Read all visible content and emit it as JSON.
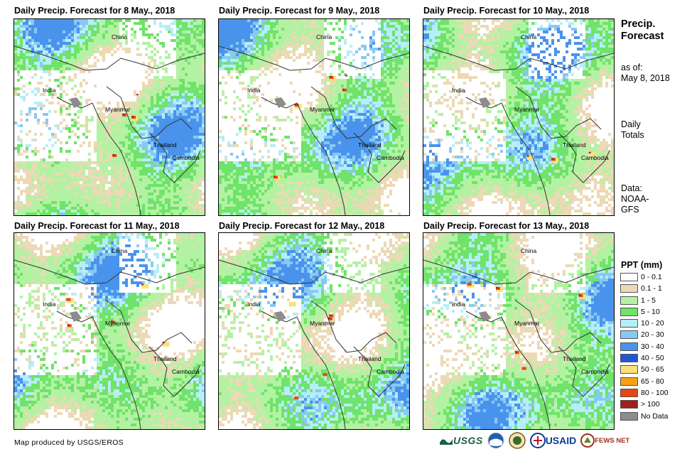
{
  "panels": [
    {
      "title": "Daily Precip. Forecast for 8 May., 2018",
      "seed": 11
    },
    {
      "title": "Daily Precip. Forecast for 9 May., 2018",
      "seed": 23
    },
    {
      "title": "Daily Precip. Forecast for 10 May., 2018",
      "seed": 37
    },
    {
      "title": "Daily Precip. Forecast for 11 May., 2018",
      "seed": 51
    },
    {
      "title": "Daily Precip. Forecast for 12 May., 2018",
      "seed": 67
    },
    {
      "title": "Daily Precip. Forecast for 13 May., 2018",
      "seed": 83
    }
  ],
  "country_labels": [
    "China",
    "India",
    "Myanmar",
    "Thailand",
    "Cambodia"
  ],
  "sidebar": {
    "title_line1": "Precip.",
    "title_line2": "Forecast",
    "asof_line1": "as of:",
    "asof_line2": "May 8, 2018",
    "daily_line1": "Daily",
    "daily_line2": "Totals",
    "data_line1": "Data:",
    "data_line2": "NOAA-",
    "data_line3": "GFS"
  },
  "legend": {
    "title": "PPT (mm)",
    "items": [
      {
        "label": "0 - 0.1",
        "color": "#ffffff"
      },
      {
        "label": "0.1 - 1",
        "color": "#ecd9b5"
      },
      {
        "label": "1 - 5",
        "color": "#b3f2a3"
      },
      {
        "label": "5 - 10",
        "color": "#6fe36a"
      },
      {
        "label": "10 - 20",
        "color": "#b6eef7"
      },
      {
        "label": "20 - 30",
        "color": "#87c9f5"
      },
      {
        "label": "30 - 40",
        "color": "#4a93ec"
      },
      {
        "label": "40 - 50",
        "color": "#1f57d8"
      },
      {
        "label": "50 - 65",
        "color": "#f9e27a"
      },
      {
        "label": "65 - 80",
        "color": "#f6a012"
      },
      {
        "label": "80 - 100",
        "color": "#e84512"
      },
      {
        "label": "> 100",
        "color": "#a51c1c"
      },
      {
        "label": "No Data",
        "color": "#8c8c8c"
      }
    ]
  },
  "credit": "Map produced by USGS/EROS",
  "logos": {
    "usgs": "USGS",
    "usaid": "USAID",
    "fews": "FEWS NET"
  }
}
